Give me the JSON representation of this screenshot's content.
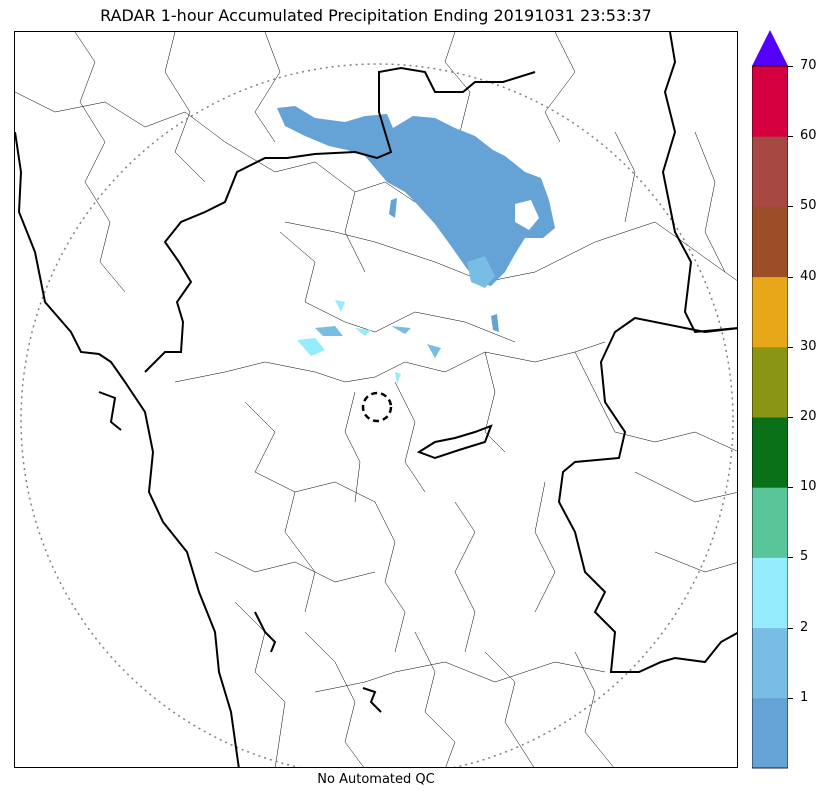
{
  "title": "RADAR 1-hour Accumulated Precipitation Ending 20191031 23:53:37",
  "footer": "No Automated QC",
  "colorbar": {
    "levels": [
      {
        "label": "",
        "color": "#65a3d6"
      },
      {
        "label": "1",
        "color": "#77bde4"
      },
      {
        "label": "2",
        "color": "#94ecfd"
      },
      {
        "label": "5",
        "color": "#5bc59a"
      },
      {
        "label": "10",
        "color": "#0a7119"
      },
      {
        "label": "20",
        "color": "#8a9513"
      },
      {
        "label": "30",
        "color": "#e7a718"
      },
      {
        "label": "40",
        "color": "#9c4f27"
      },
      {
        "label": "50",
        "color": "#a64942"
      },
      {
        "label": "60",
        "color": "#d40040"
      }
    ],
    "max_label": "70",
    "extend_color": "#5400ff"
  },
  "colors": {
    "rain_light": "#65a3d6",
    "rain_medium": "#77bde4",
    "rain_cyan": "#94ecfd",
    "range_ring": "#808080",
    "boundary": "#000000"
  }
}
